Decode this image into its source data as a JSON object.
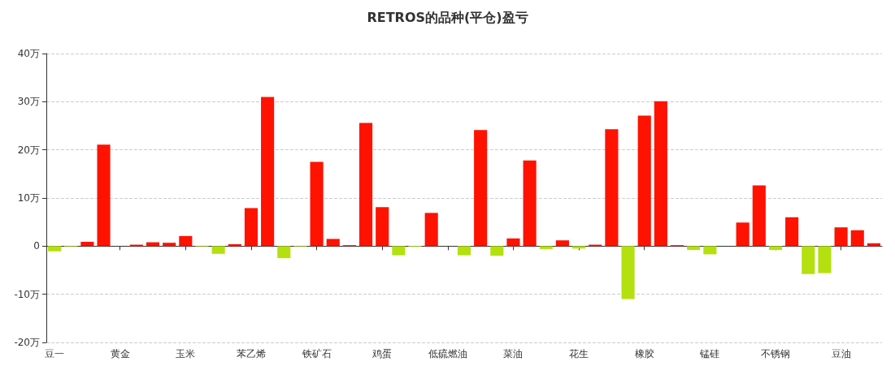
{
  "chart_data": {
    "type": "bar",
    "title": "RETROS的品种(平仓)盈亏",
    "categories": [
      "豆一",
      null,
      null,
      null,
      "黄金",
      null,
      null,
      null,
      "玉米",
      null,
      null,
      null,
      "苯乙烯",
      null,
      null,
      null,
      "铁矿石",
      null,
      null,
      null,
      "鸡蛋",
      null,
      null,
      null,
      "低硫燃油",
      null,
      null,
      null,
      "菜油",
      null,
      null,
      null,
      "花生",
      null,
      null,
      null,
      "橡胶",
      null,
      null,
      null,
      "锰硅",
      null,
      null,
      null,
      "不锈钢",
      null,
      null,
      null,
      "豆油",
      null,
      null
    ],
    "values": [
      -1.1,
      -0.1,
      0.9,
      21.1,
      0,
      0.3,
      0.8,
      0.7,
      2.1,
      -0.1,
      -1.6,
      0.4,
      7.9,
      31.0,
      -2.5,
      -0.1,
      17.5,
      1.5,
      0.2,
      25.6,
      8.1,
      -1.9,
      -0.1,
      6.9,
      0,
      -1.9,
      24.1,
      -2.0,
      1.6,
      17.8,
      -0.6,
      1.2,
      -0.5,
      0.3,
      24.3,
      -11.0,
      27.1,
      30.1,
      0.2,
      -0.8,
      -1.7,
      null,
      4.9,
      12.6,
      -0.8,
      6.0,
      -5.8,
      -5.6,
      3.9,
      3.3,
      0.6
    ],
    "colors": [
      "#b4e00f",
      "#b4e00f",
      "#ff1200",
      "#ff1200",
      "#ff1200",
      "#ff1200",
      "#ff1200",
      "#ff1200",
      "#ff1200",
      "#b4e00f",
      "#b4e00f",
      "#ff1200",
      "#ff1200",
      "#ff1200",
      "#b4e00f",
      "#b4e00f",
      "#ff1200",
      "#ff1200",
      "#ff1200",
      "#ff1200",
      "#ff1200",
      "#b4e00f",
      "#b4e00f",
      "#ff1200",
      "#ff1200",
      "#b4e00f",
      "#ff1200",
      "#b4e00f",
      "#ff1200",
      "#ff1200",
      "#b4e00f",
      "#ff1200",
      "#b4e00f",
      "#ff1200",
      "#ff1200",
      "#b4e00f",
      "#ff1200",
      "#ff1200",
      "#ff1200",
      "#b4e00f",
      "#b4e00f",
      "#ff1200",
      "#ff1200",
      "#ff1200",
      "#b4e00f",
      "#ff1200",
      "#b4e00f",
      "#b4e00f",
      "#ff1200",
      "#ff1200",
      "#ff1200"
    ],
    "ylim": [
      -20,
      40
    ],
    "yticks": [
      {
        "value": -20,
        "label": "-20万"
      },
      {
        "value": -10,
        "label": "-10万"
      },
      {
        "value": 0,
        "label": "0"
      },
      {
        "value": 10,
        "label": "10万"
      },
      {
        "value": 20,
        "label": "20万"
      },
      {
        "value": 30,
        "label": "30万"
      },
      {
        "value": 40,
        "label": "40万"
      }
    ],
    "grid": "y"
  }
}
